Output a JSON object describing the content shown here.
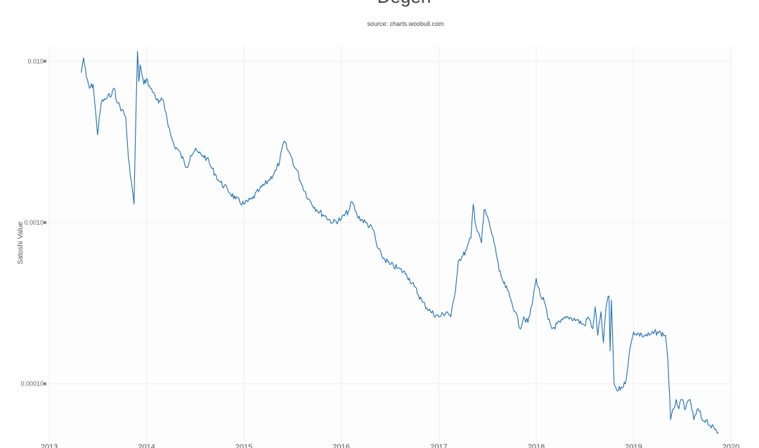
{
  "chart_data": {
    "type": "line",
    "title": "Degen",
    "subtitle": "source: charts.woobull.com",
    "xlabel": "",
    "ylabel": "Satoshi Value",
    "y_scale": "log",
    "ylim": [
      4e-05,
      0.0125
    ],
    "xlim": [
      "2013-01-01",
      "2020-01-01"
    ],
    "grid": true,
    "legend": "none",
    "line_color": "#1f6fb2",
    "x_ticks": [
      "2013",
      "2014",
      "2015",
      "2016",
      "2017",
      "2018",
      "2019",
      "2020"
    ],
    "y_ticks": [
      {
        "value": 0.01,
        "label": "0.010"
      },
      {
        "value": 0.001,
        "label": "0.0010"
      },
      {
        "value": 0.0001,
        "label": "0.00010"
      }
    ],
    "series": [
      {
        "x": [
          "2013-05-01",
          "2013-05-10",
          "2013-05-20",
          "2013-06-01",
          "2013-06-15",
          "2013-07-01",
          "2013-07-08",
          "2013-07-15",
          "2013-08-01",
          "2013-08-10",
          "2013-08-20",
          "2013-09-01",
          "2013-09-15",
          "2013-10-01",
          "2013-10-15",
          "2013-10-25",
          "2013-11-05",
          "2013-11-15",
          "2013-11-22",
          "2013-11-28",
          "2013-12-03",
          "2013-12-08",
          "2013-12-15",
          "2013-12-22",
          "2014-01-01",
          "2014-01-15",
          "2014-02-01",
          "2014-02-15",
          "2014-03-01",
          "2014-03-15",
          "2014-04-01",
          "2014-04-15",
          "2014-05-01",
          "2014-06-01",
          "2014-06-15",
          "2014-07-01",
          "2014-07-15",
          "2014-08-01",
          "2014-08-15",
          "2014-09-01",
          "2014-09-15",
          "2014-10-01",
          "2014-11-01",
          "2014-12-01",
          "2015-01-01",
          "2015-02-01",
          "2015-03-01",
          "2015-04-01",
          "2015-05-01",
          "2015-05-15",
          "2015-06-01",
          "2015-06-15",
          "2015-07-01",
          "2015-07-10",
          "2015-07-20",
          "2015-08-01",
          "2015-09-01",
          "2015-10-01",
          "2015-11-01",
          "2015-12-01",
          "2016-01-01",
          "2016-02-01",
          "2016-02-10",
          "2016-03-01",
          "2016-04-01",
          "2016-05-01",
          "2016-05-15",
          "2016-06-01",
          "2016-07-01",
          "2016-08-01",
          "2016-09-01",
          "2016-10-01",
          "2016-11-01",
          "2016-12-01",
          "2017-01-01",
          "2017-02-01",
          "2017-02-15",
          "2017-03-01",
          "2017-03-15",
          "2017-04-01",
          "2017-04-15",
          "2017-05-01",
          "2017-05-10",
          "2017-05-20",
          "2017-06-01",
          "2017-06-10",
          "2017-06-20",
          "2017-07-01",
          "2017-07-15",
          "2017-08-01",
          "2017-08-15",
          "2017-09-01",
          "2017-09-15",
          "2017-10-01",
          "2017-10-15",
          "2017-11-01",
          "2017-11-15",
          "2017-12-01",
          "2017-12-15",
          "2018-01-01",
          "2018-01-15",
          "2018-02-01",
          "2018-02-15",
          "2018-03-01",
          "2018-04-01",
          "2018-05-01",
          "2018-06-01",
          "2018-07-01",
          "2018-07-15",
          "2018-08-01",
          "2018-08-10",
          "2018-08-20",
          "2018-09-01",
          "2018-09-10",
          "2018-09-20",
          "2018-10-01",
          "2018-10-05",
          "2018-10-10",
          "2018-10-20",
          "2018-11-01",
          "2018-12-01",
          "2018-12-15",
          "2019-01-01",
          "2019-02-01",
          "2019-03-01",
          "2019-04-01",
          "2019-05-01",
          "2019-05-10",
          "2019-05-20",
          "2019-06-01",
          "2019-06-10",
          "2019-06-20",
          "2019-07-01",
          "2019-07-15",
          "2019-08-01",
          "2019-08-15",
          "2019-09-01",
          "2019-09-15",
          "2019-10-01",
          "2019-10-15",
          "2019-11-01",
          "2019-11-15"
        ],
        "y": [
          0.0085,
          0.0105,
          0.008,
          0.0068,
          0.0072,
          0.0035,
          0.0045,
          0.0055,
          0.0058,
          0.0062,
          0.006,
          0.0068,
          0.0055,
          0.005,
          0.0045,
          0.0025,
          0.0018,
          0.0013,
          0.0045,
          0.0115,
          0.0075,
          0.0095,
          0.0082,
          0.0072,
          0.0078,
          0.0068,
          0.0062,
          0.0055,
          0.0058,
          0.0048,
          0.0035,
          0.003,
          0.0028,
          0.0022,
          0.0026,
          0.0028,
          0.0027,
          0.0026,
          0.0025,
          0.0022,
          0.002,
          0.0018,
          0.0016,
          0.0014,
          0.0013,
          0.0014,
          0.0016,
          0.0018,
          0.0021,
          0.0024,
          0.0032,
          0.0028,
          0.0025,
          0.0022,
          0.0021,
          0.0018,
          0.0014,
          0.0012,
          0.0011,
          0.001,
          0.00105,
          0.0012,
          0.00135,
          0.0011,
          0.001,
          0.0009,
          0.0007,
          0.00062,
          0.00055,
          0.00052,
          0.00048,
          0.0004,
          0.00032,
          0.00028,
          0.00026,
          0.00028,
          0.00026,
          0.00035,
          0.00058,
          0.00062,
          0.00068,
          0.0008,
          0.0013,
          0.00095,
          0.00085,
          0.00075,
          0.0012,
          0.0011,
          0.0009,
          0.0007,
          0.0005,
          0.00042,
          0.00038,
          0.00032,
          0.00028,
          0.00022,
          0.00026,
          0.00024,
          0.0003,
          0.00045,
          0.00036,
          0.00032,
          0.00025,
          0.00022,
          0.00024,
          0.00026,
          0.00025,
          0.00023,
          0.00026,
          0.00022,
          0.0003,
          0.0002,
          0.00028,
          0.00018,
          0.0003,
          0.00035,
          0.00016,
          0.00033,
          0.0001,
          9e-05,
          0.0001,
          0.00015,
          0.00021,
          0.0002,
          0.0002,
          0.00021,
          0.0002,
          0.00014,
          6e-05,
          7e-05,
          8e-05,
          7e-05,
          8e-05,
          7e-05,
          8e-05,
          6e-05,
          7e-05,
          6e-05,
          6e-05,
          5.5e-05,
          5.2e-05,
          5e-05
        ]
      }
    ]
  }
}
